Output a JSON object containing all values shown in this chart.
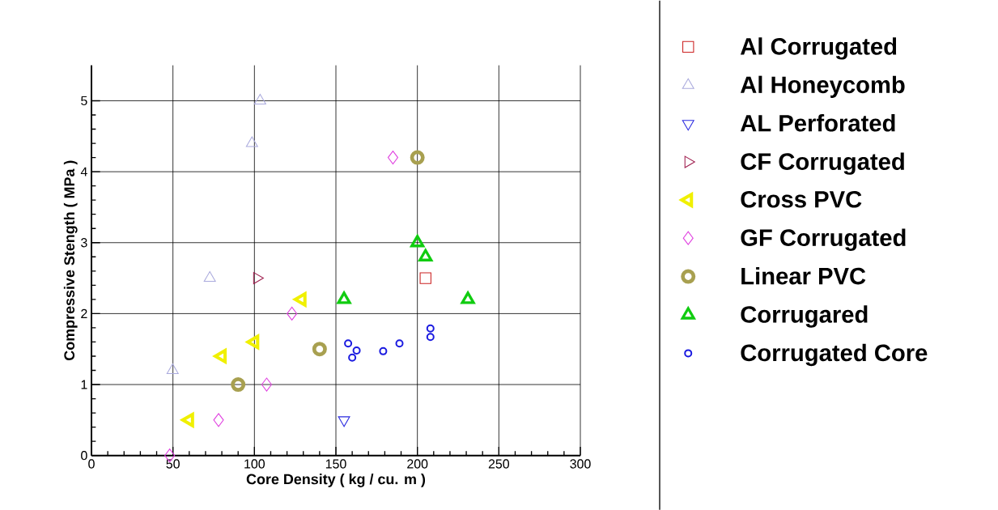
{
  "chart_data": {
    "type": "scatter",
    "xlabel": "Core Density ( kg / cu. m )",
    "ylabel": "Compressive Stength ( MPa )",
    "xlim": [
      0,
      300
    ],
    "ylim": [
      0,
      5.5
    ],
    "xticks": [
      0,
      50,
      100,
      150,
      200,
      250,
      300
    ],
    "yticks": [
      0,
      1,
      2,
      3,
      4,
      5
    ],
    "grid": true,
    "legend": "right",
    "series": [
      {
        "name": "Al Corrugated",
        "color": "#cc2222",
        "marker": "square",
        "x": [
          205
        ],
        "values": [
          2.5
        ]
      },
      {
        "name": "Al Honeycomb",
        "color": "#aaaadd",
        "marker": "triangle",
        "x": [
          103.5,
          98.5,
          72.6,
          49.8
        ],
        "values": [
          5.0,
          4.4,
          2.5,
          1.2
        ]
      },
      {
        "name": "AL Perforated",
        "color": "#2a2ae0",
        "marker": "triangle-down",
        "x": [
          155
        ],
        "values": [
          0.5
        ]
      },
      {
        "name": "CF Corrugated",
        "color": "#a02050",
        "marker": "triangle-right",
        "x": [
          101.5
        ],
        "values": [
          2.5
        ]
      },
      {
        "name": "Cross PVC",
        "color": "#f0f000",
        "marker": "triangle-left",
        "x": [
          60,
          80,
          100,
          129
        ],
        "values": [
          0.5,
          1.4,
          1.6,
          2.2
        ]
      },
      {
        "name": "GF Corrugated",
        "color": "#e040e0",
        "marker": "diamond",
        "x": [
          48,
          78,
          107.5,
          123,
          185
        ],
        "values": [
          0,
          0.5,
          1.0,
          2.0,
          4.2
        ]
      },
      {
        "name": "Linear PVC",
        "color": "#a8a050",
        "marker": "circle",
        "x": [
          90,
          140,
          200
        ],
        "values": [
          1.0,
          1.5,
          4.2
        ]
      },
      {
        "name": "Corrugared",
        "color": "#10cc10",
        "marker": "triangle",
        "x": [
          200,
          205,
          155,
          231
        ],
        "values": [
          3.0,
          2.8,
          2.2,
          2.2
        ]
      },
      {
        "name": "Corrugated Core",
        "color": "#1a1ae0",
        "marker": "circle",
        "x": [
          157.5,
          162.7,
          160,
          179,
          189,
          208,
          208
        ],
        "values": [
          1.58,
          1.48,
          1.38,
          1.47,
          1.58,
          1.79,
          1.67
        ]
      }
    ]
  }
}
